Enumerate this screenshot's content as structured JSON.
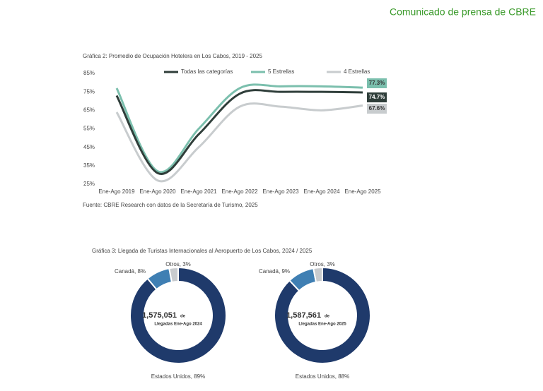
{
  "header": {
    "title": "Comunicado de prensa de CBRE"
  },
  "figure3": {
    "title": "Gráfica 3: Llegada de Turistas Internacionales al Aeropuerto de Los Cabos, 2024 / 2025"
  },
  "chart_data": [
    {
      "type": "line",
      "title": "Gráfica 2: Promedio de Ocupación Hotelera en Los Cabos, 2019 - 2025",
      "source": "Fuente: CBRE Research con datos de la Secretaría de Turismo, 2025",
      "categories": [
        "Ene-Ago 2019",
        "Ene-Ago 2020",
        "Ene-Ago 2021",
        "Ene-Ago 2022",
        "Ene-Ago 2023",
        "Ene-Ago 2024",
        "Ene-Ago 2025"
      ],
      "ylim": [
        25,
        85
      ],
      "yticks": [
        {
          "value": 25,
          "label": "25%"
        },
        {
          "value": 35,
          "label": "35%"
        },
        {
          "value": 45,
          "label": "45%"
        },
        {
          "value": 55,
          "label": "55%"
        },
        {
          "value": 65,
          "label": "65%"
        },
        {
          "value": 75,
          "label": "75%"
        },
        {
          "value": 85,
          "label": "85%"
        }
      ],
      "series": [
        {
          "name": "Todas las categorías",
          "color": "#2f3e3a",
          "values": [
            73,
            31,
            52,
            74,
            75,
            75,
            74.7
          ],
          "value_labels": [
            null,
            null,
            null,
            null,
            null,
            null,
            "74.7%"
          ]
        },
        {
          "name": "5 Estrellas",
          "color": "#7bbfad",
          "values": [
            77,
            32,
            55,
            77,
            78,
            78,
            77.3
          ],
          "value_labels": [
            null,
            null,
            null,
            null,
            null,
            null,
            "77.3%"
          ]
        },
        {
          "name": "4 Estrellas",
          "color": "#c8ccce",
          "values": [
            64,
            27,
            45,
            67,
            67,
            65,
            67.6
          ],
          "value_labels": [
            null,
            null,
            null,
            null,
            null,
            null,
            "67.6%"
          ]
        }
      ]
    },
    {
      "type": "pie",
      "values": [
        89,
        8,
        3
      ],
      "colors": [
        "#1f3a6b",
        "#3f7fb3",
        "#c8cbce"
      ],
      "value_labels": [
        "Estados Unidos, 89%",
        "Canadá, 8%",
        "Otros, 3%"
      ],
      "center_value": "1,575,051",
      "center_suffix": "de",
      "center_caption": "Llegadas Ene-Ago 2024"
    },
    {
      "type": "pie",
      "values": [
        88,
        9,
        3
      ],
      "colors": [
        "#1f3a6b",
        "#3f7fb3",
        "#c8cbce"
      ],
      "value_labels": [
        "Estados Unidos, 88%",
        "Canadá, 9%",
        "Otros, 3%"
      ],
      "center_value": "1,587,561",
      "center_suffix": "de",
      "center_caption": "Llegadas Ene-Ago 2025"
    }
  ]
}
